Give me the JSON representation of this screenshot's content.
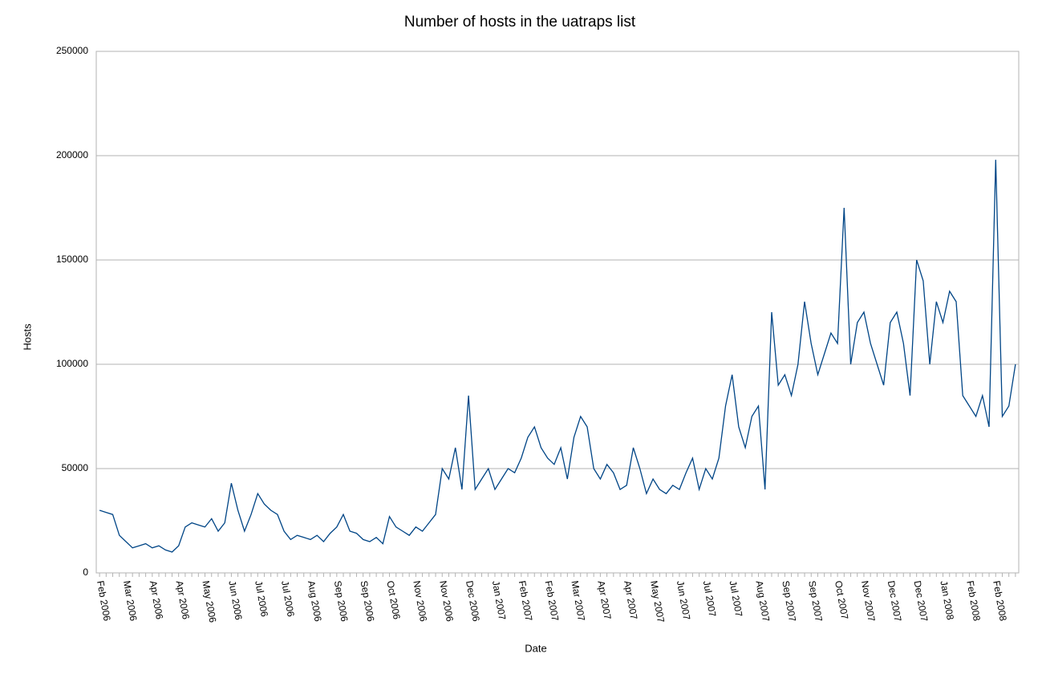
{
  "chart_data": {
    "type": "line",
    "title": "Number of hosts in the uatraps list",
    "x_label": "Date",
    "y_label": "Hosts",
    "categories": [
      "Feb 2006",
      null,
      null,
      null,
      "Mar 2006",
      null,
      null,
      null,
      "Apr 2006",
      null,
      null,
      null,
      "Apr 2006",
      null,
      null,
      null,
      "May 2006",
      null,
      null,
      null,
      "Jun 2006",
      null,
      null,
      null,
      "Jul 2006",
      null,
      null,
      null,
      "Jul 2006",
      null,
      null,
      null,
      "Aug 2006",
      null,
      null,
      null,
      "Sep 2006",
      null,
      null,
      null,
      "Sep 2006",
      null,
      null,
      null,
      "Oct 2006",
      null,
      null,
      null,
      "Nov 2006",
      null,
      null,
      null,
      "Nov 2006",
      null,
      null,
      null,
      "Dec 2006",
      null,
      null,
      null,
      "Jan 2007",
      null,
      null,
      null,
      "Feb 2007",
      null,
      null,
      null,
      "Feb 2007",
      null,
      null,
      null,
      "Mar 2007",
      null,
      null,
      null,
      "Apr 2007",
      null,
      null,
      null,
      "Apr 2007",
      null,
      null,
      null,
      "May 2007",
      null,
      null,
      null,
      "Jun 2007",
      null,
      null,
      null,
      "Jul 2007",
      null,
      null,
      null,
      "Jul 2007",
      null,
      null,
      null,
      "Aug 2007",
      null,
      null,
      null,
      "Sep 2007",
      null,
      null,
      null,
      "Sep 2007",
      null,
      null,
      null,
      "Oct 2007",
      null,
      null,
      null,
      "Nov 2007",
      null,
      null,
      null,
      "Dec 2007",
      null,
      null,
      null,
      "Dec 2007",
      null,
      null,
      null,
      "Jan 2008",
      null,
      null,
      null,
      "Feb 2008",
      null,
      null,
      null,
      "Feb 2008",
      null,
      null,
      null
    ],
    "series": [
      {
        "name": "Hosts",
        "color": "#004586",
        "values": [
          30000,
          29000,
          28000,
          18000,
          15000,
          12000,
          13000,
          14000,
          12000,
          13000,
          11000,
          10000,
          13000,
          22000,
          24000,
          23000,
          22000,
          26000,
          20000,
          24000,
          43000,
          30000,
          20000,
          28000,
          38000,
          33000,
          30000,
          28000,
          20000,
          16000,
          18000,
          17000,
          16000,
          18000,
          15000,
          19000,
          22000,
          28000,
          20000,
          19000,
          16000,
          15000,
          17000,
          14000,
          27000,
          22000,
          20000,
          18000,
          22000,
          20000,
          24000,
          28000,
          50000,
          45000,
          60000,
          40000,
          85000,
          40000,
          45000,
          50000,
          40000,
          45000,
          50000,
          48000,
          55000,
          65000,
          70000,
          60000,
          55000,
          52000,
          60000,
          45000,
          65000,
          75000,
          70000,
          50000,
          45000,
          52000,
          48000,
          40000,
          42000,
          60000,
          50000,
          38000,
          45000,
          40000,
          38000,
          42000,
          40000,
          48000,
          55000,
          40000,
          50000,
          45000,
          55000,
          80000,
          95000,
          70000,
          60000,
          75000,
          80000,
          40000,
          125000,
          90000,
          95000,
          85000,
          100000,
          130000,
          110000,
          95000,
          105000,
          115000,
          110000,
          175000,
          100000,
          120000,
          125000,
          110000,
          100000,
          90000,
          120000,
          125000,
          110000,
          85000,
          150000,
          140000,
          100000,
          130000,
          120000,
          135000,
          130000,
          85000,
          80000,
          75000,
          85000,
          70000,
          198000,
          75000,
          80000,
          100000
        ]
      }
    ],
    "ylim": [
      0,
      250000
    ],
    "yticks": [
      0,
      50000,
      100000,
      150000,
      200000,
      250000
    ],
    "grid": true
  }
}
